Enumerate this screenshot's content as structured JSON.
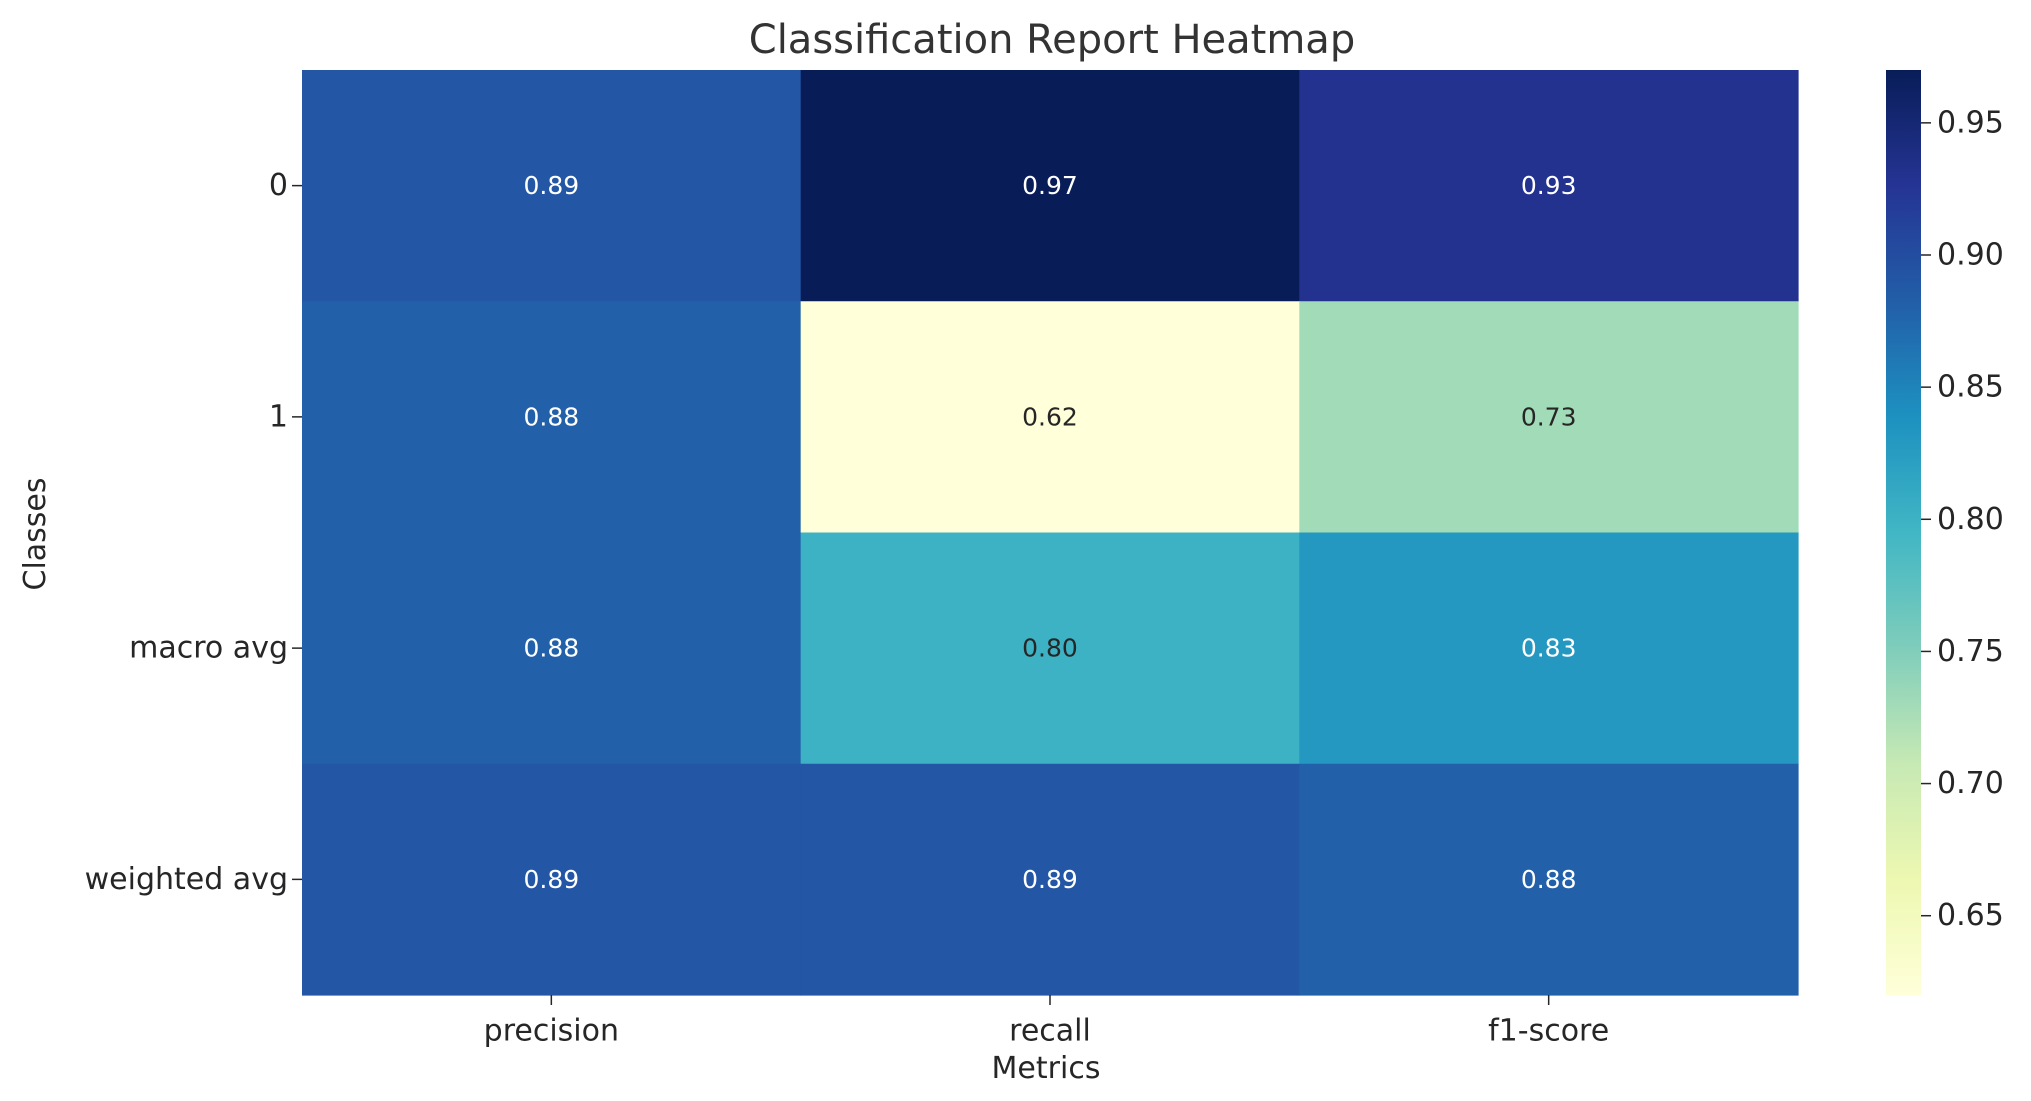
{
  "chart_data": {
    "type": "heatmap",
    "title": "Classification Report Heatmap",
    "xlabel": "Metrics",
    "ylabel": "Classes",
    "columns": [
      "precision",
      "recall",
      "f1-score"
    ],
    "rows": [
      "0",
      "1",
      "macro avg",
      "weighted avg"
    ],
    "values": [
      [
        0.89,
        0.97,
        0.93
      ],
      [
        0.88,
        0.62,
        0.73
      ],
      [
        0.88,
        0.8,
        0.83
      ],
      [
        0.89,
        0.89,
        0.88
      ]
    ],
    "cell_labels": [
      [
        "0.89",
        "0.97",
        "0.93"
      ],
      [
        "0.88",
        "0.62",
        "0.73"
      ],
      [
        "0.88",
        "0.80",
        "0.83"
      ],
      [
        "0.89",
        "0.89",
        "0.88"
      ]
    ],
    "colorbar": {
      "min": 0.62,
      "max": 0.97,
      "ticks": [
        0.65,
        0.7,
        0.75,
        0.8,
        0.85,
        0.9,
        0.95
      ],
      "tick_labels": [
        "0.65",
        "0.70",
        "0.75",
        "0.80",
        "0.85",
        "0.90",
        "0.95"
      ]
    },
    "colormap": "YlGnBu",
    "colormap_stops": [
      "#ffffd9",
      "#edf8b1",
      "#c7e9b4",
      "#7fcdbb",
      "#41b6c4",
      "#1d91c0",
      "#225ea8",
      "#253494",
      "#081d58"
    ],
    "grid": false
  }
}
